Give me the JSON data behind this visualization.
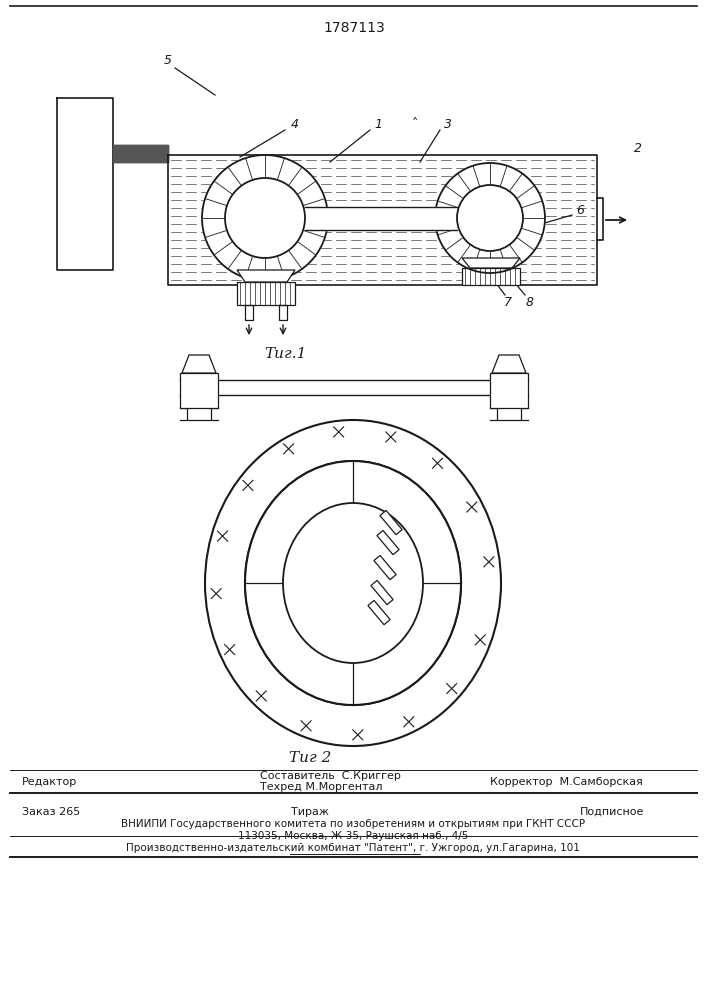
{
  "patent_number": "1787113",
  "fig1_label": "Τиг.1",
  "fig2_label": "Τиг 2",
  "footer_editor": "Редактор",
  "footer_composer": "Составитель  С.Криггер",
  "footer_techred": "Техред М.Моргентал",
  "footer_corrector": "Корректор  М.Самборская",
  "footer_order": "Заказ 265",
  "footer_tirazh": "Тираж",
  "footer_podpisnoe": "Подписное",
  "footer_vniip": "ВНИИПИ Государственного комитета по изобретениям и открытиям при ГКНТ СССР",
  "footer_addr": "113035, Москва, Ж-35, Раушская наб., 4/5",
  "footer_prod": "Производственно-издательский комбинат \"Патент\", г. Ужгород, ул.Гагарина, 101",
  "bg_color": "#ffffff",
  "line_color": "#1a1a1a"
}
